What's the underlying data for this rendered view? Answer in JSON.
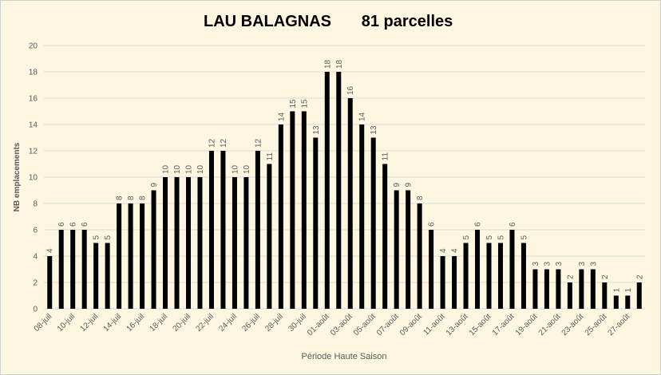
{
  "chart_data": {
    "type": "bar",
    "title": "LAU BALAGNAS",
    "subtitle": "81 parcelles",
    "x_label": "Période Haute Saison",
    "y_label": "NB emplacements",
    "categories": [
      "08-juil",
      null,
      "10-juil",
      null,
      "12-juil",
      null,
      "14-juil",
      null,
      "16-juil",
      null,
      "18-juil",
      null,
      "20-juil",
      null,
      "22-juil",
      null,
      "24-juil",
      null,
      "26-juil",
      null,
      "28-juil",
      null,
      "30-juil",
      null,
      "01-août",
      null,
      "03-août",
      null,
      "05-août",
      null,
      "07-août",
      null,
      "09-août",
      null,
      "11-août",
      null,
      "13-août",
      null,
      "15-août",
      null,
      "17-août",
      null,
      "19-août",
      null,
      "21-août",
      null,
      "23-août",
      null,
      "25-août",
      null,
      "27-août",
      null
    ],
    "values": [
      4,
      6,
      6,
      6,
      5,
      5,
      8,
      8,
      8,
      9,
      10,
      10,
      10,
      10,
      12,
      12,
      10,
      10,
      12,
      11,
      14,
      15,
      15,
      13,
      18,
      18,
      16,
      14,
      13,
      11,
      9,
      9,
      8,
      6,
      4,
      4,
      5,
      6,
      5,
      5,
      6,
      5,
      3,
      3,
      3,
      2,
      3,
      3,
      2,
      1,
      1,
      2
    ],
    "color": "#000000",
    "ylim": [
      0,
      20
    ],
    "yticks": [
      0,
      2,
      4,
      6,
      8,
      10,
      12,
      14,
      16,
      18,
      20
    ],
    "grid": true
  }
}
